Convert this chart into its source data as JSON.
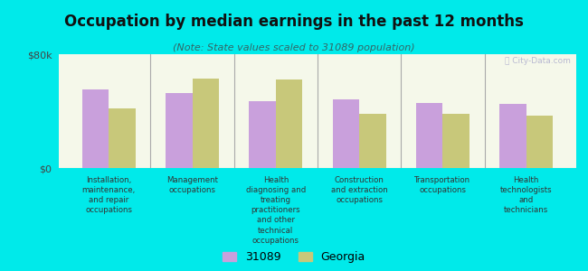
{
  "title": "Occupation by median earnings in the past 12 months",
  "subtitle": "(Note: State values scaled to 31089 population)",
  "background_outer": "#00eaea",
  "background_inner_top": "#e8f0c8",
  "background_inner_bottom": "#f5f8ea",
  "bar_color_31089": "#c9a0dc",
  "bar_color_georgia": "#c8c87a",
  "categories": [
    "Installation,\nmaintenance,\nand repair\noccupations",
    "Management\noccupations",
    "Health\ndiagnosing and\ntreating\npractitioners\nand other\ntechnical\noccupations",
    "Construction\nand extraction\noccupations",
    "Transportation\noccupations",
    "Health\ntechnologists\nand\ntechnicians"
  ],
  "values_31089": [
    55000,
    53000,
    47000,
    48000,
    46000,
    45000
  ],
  "values_georgia": [
    42000,
    63000,
    62000,
    38000,
    38000,
    37000
  ],
  "ylim": [
    0,
    80000
  ],
  "yticks": [
    0,
    80000
  ],
  "ytick_labels": [
    "$0",
    "$80k"
  ],
  "legend_31089": "31089",
  "legend_georgia": "Georgia",
  "watermark": "Ⓡ City-Data.com"
}
